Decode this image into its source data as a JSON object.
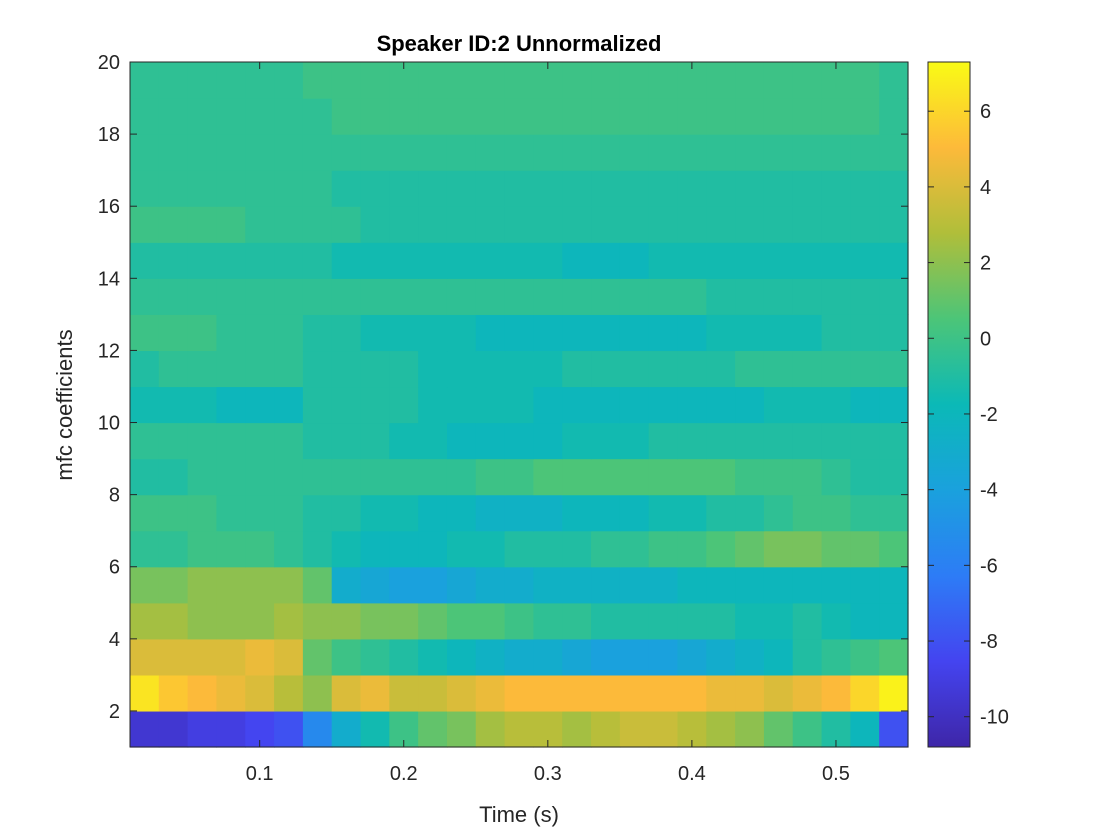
{
  "chart_data": {
    "type": "heatmap",
    "title": "Speaker ID:2 Unnormalized",
    "xlabel": "Time (s)",
    "ylabel": "mfc coefficients",
    "xlim": [
      0.01,
      0.55
    ],
    "ylim": [
      1,
      20
    ],
    "xticks": [
      0.1,
      0.2,
      0.3,
      0.4,
      0.5
    ],
    "xtick_labels": [
      "0.1",
      "0.2",
      "0.3",
      "0.4",
      "0.5"
    ],
    "yticks": [
      2,
      4,
      6,
      8,
      10,
      12,
      14,
      16,
      18,
      20
    ],
    "ytick_labels": [
      "2",
      "4",
      "6",
      "8",
      "10",
      "12",
      "14",
      "16",
      "18",
      "20"
    ],
    "colorbar": {
      "limits": [
        -10.8,
        7.3
      ],
      "ticks": [
        -10,
        -8,
        -6,
        -4,
        -2,
        0,
        2,
        4,
        6
      ],
      "tick_labels": [
        "-10",
        "-8",
        "-6",
        "-4",
        "-2",
        "0",
        "2",
        "4",
        "6"
      ],
      "colormap": "parula"
    },
    "x": [
      0.02,
      0.04,
      0.06,
      0.08,
      0.1,
      0.12,
      0.14,
      0.16,
      0.18,
      0.2,
      0.22,
      0.24,
      0.26,
      0.28,
      0.3,
      0.32,
      0.34,
      0.36,
      0.38,
      0.4,
      0.42,
      0.44,
      0.46,
      0.48,
      0.5,
      0.52,
      0.54
    ],
    "y": [
      1.5,
      2.5,
      3.5,
      4.5,
      5.5,
      6.5,
      7.5,
      8.5,
      9.5,
      10.5,
      11.5,
      12.5,
      13.5,
      14.5,
      15.5,
      16.5,
      17.5,
      18.5,
      19.5
    ],
    "z": [
      [
        -9.5,
        -9.5,
        -9.0,
        -9.0,
        -8.5,
        -8.0,
        -5.5,
        -3.0,
        -1.5,
        0.0,
        1.0,
        1.5,
        2.5,
        3.0,
        3.0,
        2.5,
        3.0,
        3.5,
        3.5,
        3.0,
        2.5,
        2.0,
        1.0,
        0.0,
        -1.0,
        -2.0,
        -8.0
      ],
      [
        6.5,
        5.5,
        5.0,
        4.5,
        4.0,
        3.0,
        2.0,
        4.0,
        4.5,
        3.5,
        3.5,
        4.0,
        4.5,
        5.0,
        5.0,
        5.0,
        5.0,
        5.0,
        5.0,
        5.0,
        4.5,
        4.5,
        4.0,
        4.5,
        5.0,
        6.0,
        7.0
      ],
      [
        4.0,
        4.0,
        4.0,
        4.0,
        4.5,
        4.0,
        1.0,
        0.0,
        -0.5,
        -1.0,
        -1.5,
        -2.0,
        -2.5,
        -3.0,
        -3.0,
        -3.5,
        -4.0,
        -4.0,
        -4.0,
        -3.5,
        -3.0,
        -2.5,
        -2.0,
        -1.0,
        -0.5,
        0.0,
        0.5
      ],
      [
        2.5,
        2.5,
        2.0,
        2.0,
        2.0,
        2.5,
        2.0,
        2.0,
        1.5,
        1.5,
        1.0,
        0.5,
        0.5,
        0.0,
        -0.5,
        -0.5,
        -1.0,
        -1.0,
        -1.0,
        -1.0,
        -1.0,
        -1.5,
        -1.5,
        -1.0,
        -1.5,
        -2.0,
        -2.0
      ],
      [
        1.5,
        1.5,
        2.0,
        2.0,
        2.0,
        2.0,
        1.0,
        -3.0,
        -3.5,
        -4.0,
        -4.0,
        -3.5,
        -3.0,
        -3.0,
        -2.5,
        -2.5,
        -2.5,
        -2.5,
        -2.5,
        -2.0,
        -2.0,
        -2.0,
        -2.0,
        -2.0,
        -2.0,
        -2.0,
        -2.0
      ],
      [
        -0.5,
        -0.5,
        0.0,
        0.0,
        0.0,
        -0.5,
        -1.0,
        -1.5,
        -2.0,
        -2.0,
        -2.0,
        -1.5,
        -1.5,
        -1.0,
        -1.0,
        -1.0,
        -0.5,
        -0.5,
        0.0,
        0.0,
        0.5,
        1.0,
        1.5,
        1.5,
        1.0,
        1.0,
        0.5
      ],
      [
        0.0,
        0.0,
        0.0,
        -0.5,
        -0.5,
        -0.5,
        -1.0,
        -1.0,
        -1.5,
        -1.5,
        -2.0,
        -2.0,
        -2.5,
        -2.5,
        -2.5,
        -2.0,
        -2.0,
        -2.0,
        -1.5,
        -1.5,
        -1.0,
        -1.0,
        -0.5,
        0.0,
        0.0,
        -0.5,
        -0.5
      ],
      [
        -1.0,
        -1.0,
        -0.5,
        -0.5,
        -0.5,
        -0.5,
        -0.5,
        -0.5,
        -0.5,
        -0.5,
        -0.5,
        -0.5,
        0.0,
        0.0,
        0.5,
        0.5,
        0.5,
        0.5,
        0.5,
        0.5,
        0.5,
        0.0,
        0.0,
        0.0,
        -0.5,
        -1.0,
        -1.0
      ],
      [
        -0.5,
        -0.5,
        -0.5,
        -0.5,
        -0.5,
        -0.5,
        -1.0,
        -1.0,
        -1.0,
        -1.5,
        -1.5,
        -2.0,
        -2.0,
        -2.0,
        -2.0,
        -1.5,
        -1.5,
        -1.5,
        -1.0,
        -1.0,
        -1.0,
        -1.0,
        -1.0,
        -1.0,
        -1.0,
        -1.0,
        -1.0
      ],
      [
        -1.5,
        -1.5,
        -1.5,
        -2.0,
        -2.0,
        -2.0,
        -1.0,
        -1.0,
        -1.0,
        -1.0,
        -1.5,
        -1.5,
        -1.5,
        -1.5,
        -2.0,
        -2.0,
        -2.0,
        -2.0,
        -2.0,
        -2.0,
        -2.0,
        -2.0,
        -1.5,
        -1.5,
        -1.5,
        -2.0,
        -2.0
      ],
      [
        -1.0,
        -0.5,
        -0.5,
        -0.5,
        -0.5,
        -0.5,
        -1.0,
        -1.0,
        -1.0,
        -1.0,
        -1.5,
        -1.5,
        -1.5,
        -1.5,
        -1.5,
        -1.0,
        -1.0,
        -1.0,
        -1.0,
        -1.0,
        -1.0,
        -0.5,
        -0.5,
        -0.5,
        -0.5,
        -0.5,
        -0.5
      ],
      [
        0.0,
        0.0,
        0.0,
        -0.5,
        -0.5,
        -0.5,
        -1.0,
        -1.0,
        -1.5,
        -1.5,
        -1.5,
        -1.5,
        -2.0,
        -2.0,
        -2.0,
        -2.0,
        -2.0,
        -2.0,
        -2.0,
        -2.0,
        -1.5,
        -1.5,
        -1.5,
        -1.5,
        -1.0,
        -1.0,
        -1.0
      ],
      [
        -0.5,
        -0.5,
        -0.5,
        -0.5,
        -0.5,
        -0.5,
        -0.5,
        -0.5,
        -0.5,
        -0.5,
        -0.5,
        -0.5,
        -0.5,
        -0.5,
        -0.5,
        -0.5,
        -0.5,
        -0.5,
        -0.5,
        -0.5,
        -1.0,
        -1.0,
        -1.0,
        -1.0,
        -1.0,
        -1.0,
        -1.0
      ],
      [
        -1.0,
        -1.0,
        -1.0,
        -1.0,
        -1.0,
        -1.0,
        -1.0,
        -1.5,
        -1.5,
        -1.5,
        -1.5,
        -1.5,
        -1.5,
        -1.5,
        -1.5,
        -2.0,
        -2.0,
        -2.0,
        -1.5,
        -1.5,
        -1.5,
        -1.5,
        -1.5,
        -1.5,
        -1.5,
        -1.5,
        -1.5
      ],
      [
        0.0,
        0.0,
        0.0,
        0.0,
        -0.5,
        -0.5,
        -0.5,
        -0.5,
        -1.0,
        -1.0,
        -1.0,
        -1.0,
        -1.0,
        -1.0,
        -1.0,
        -1.0,
        -1.0,
        -1.0,
        -1.0,
        -1.0,
        -1.0,
        -1.0,
        -1.0,
        -1.0,
        -1.0,
        -1.0,
        -1.0
      ],
      [
        -0.5,
        -0.5,
        -0.5,
        -0.5,
        -0.5,
        -0.5,
        -0.5,
        -1.0,
        -1.0,
        -1.0,
        -1.0,
        -1.0,
        -1.0,
        -1.0,
        -1.0,
        -1.0,
        -1.0,
        -1.0,
        -1.0,
        -1.0,
        -1.0,
        -1.0,
        -1.0,
        -1.0,
        -1.0,
        -1.0,
        -1.0
      ],
      [
        -0.5,
        -0.5,
        -0.5,
        -0.5,
        -0.5,
        -0.5,
        -0.5,
        -0.5,
        -0.5,
        -0.5,
        -0.5,
        -0.5,
        -0.5,
        -0.5,
        -0.5,
        -0.5,
        -0.5,
        -0.5,
        -0.5,
        -0.5,
        -0.5,
        -0.5,
        -0.5,
        -0.5,
        -0.5,
        -0.5,
        -0.5
      ],
      [
        -0.5,
        -0.5,
        -0.5,
        -0.5,
        -0.5,
        -0.5,
        -0.5,
        0.0,
        0.0,
        0.0,
        0.0,
        0.0,
        0.0,
        0.0,
        0.0,
        0.0,
        0.0,
        0.0,
        0.0,
        0.0,
        0.0,
        0.0,
        0.0,
        0.0,
        0.0,
        0.0,
        -0.5
      ],
      [
        -0.5,
        -0.5,
        -0.5,
        -0.5,
        -0.5,
        -0.5,
        0.0,
        0.0,
        0.0,
        0.0,
        0.0,
        0.0,
        0.0,
        0.0,
        0.0,
        0.0,
        0.0,
        0.0,
        0.0,
        0.0,
        0.0,
        0.0,
        0.0,
        0.0,
        0.0,
        0.0,
        -0.5
      ]
    ]
  }
}
